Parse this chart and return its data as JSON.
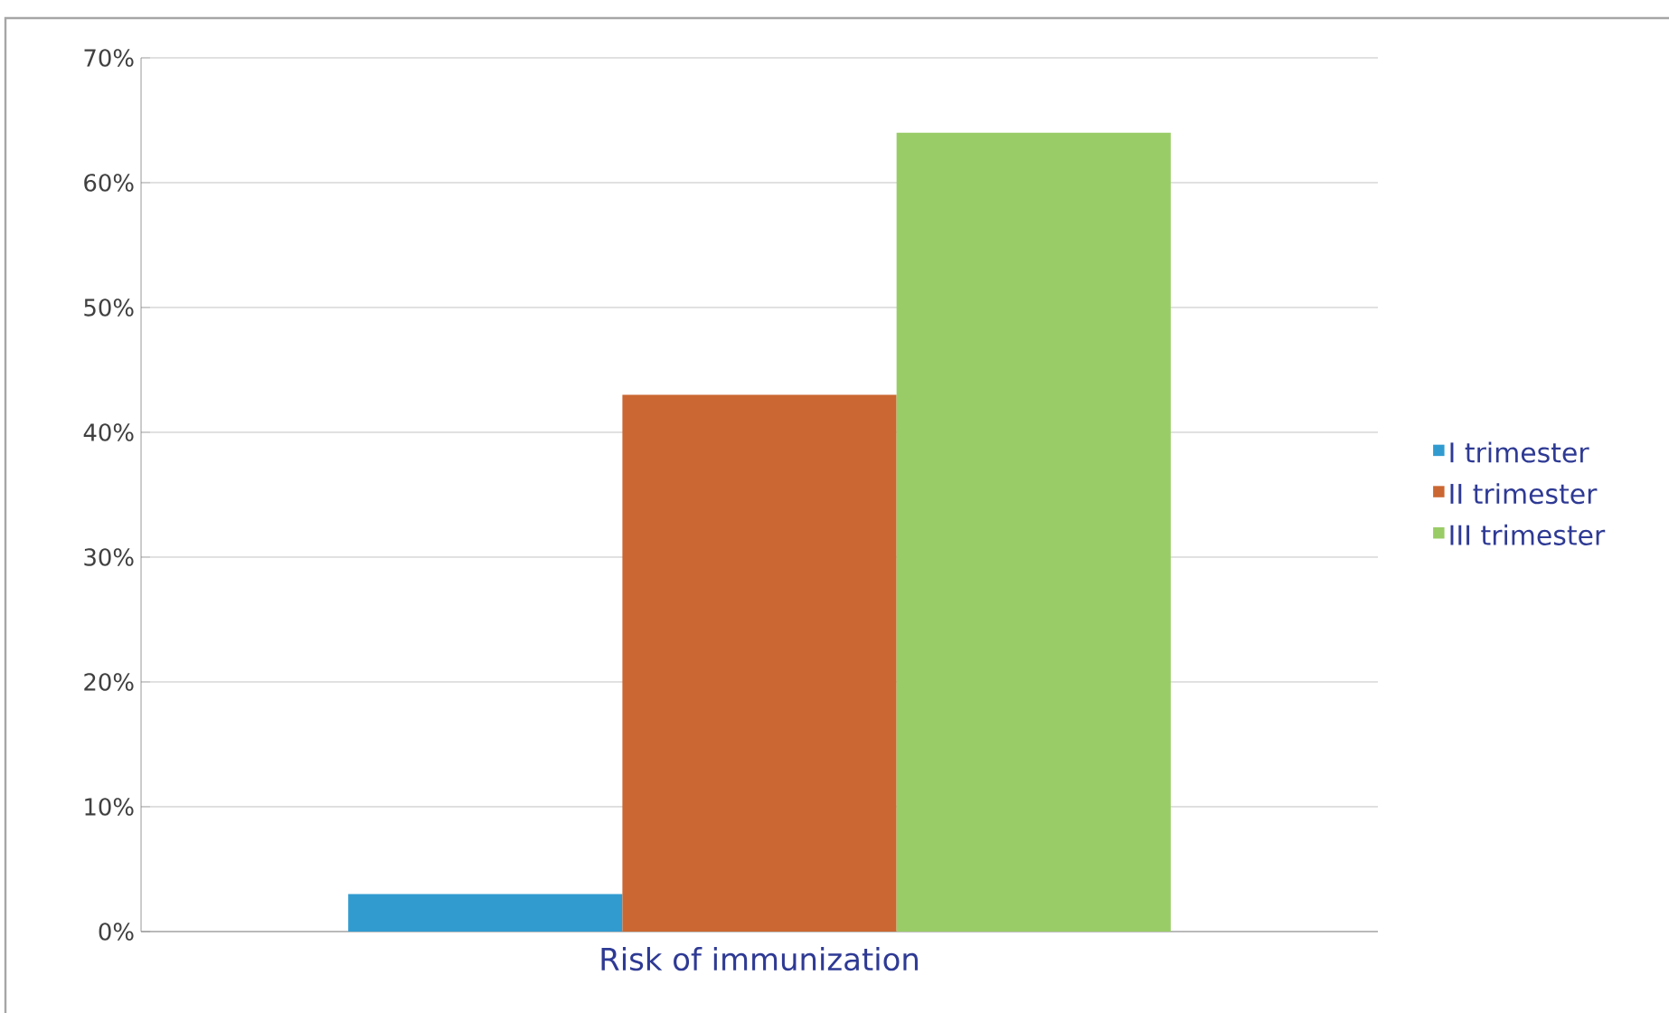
{
  "chart_data": {
    "type": "bar",
    "categories": [
      "Risk of immunization"
    ],
    "series": [
      {
        "name": "I trimester",
        "color": "#319bd0",
        "values": [
          3
        ]
      },
      {
        "name": "II trimester",
        "color": "#cb6732",
        "values": [
          43
        ]
      },
      {
        "name": "III trimester",
        "color": "#99cc66",
        "values": [
          64
        ]
      }
    ],
    "ylim": [
      0,
      70
    ],
    "yticks": [
      {
        "value": 0,
        "label": "0%"
      },
      {
        "value": 10,
        "label": "10%"
      },
      {
        "value": 20,
        "label": "20%"
      },
      {
        "value": 30,
        "label": "30%"
      },
      {
        "value": 40,
        "label": "40%"
      },
      {
        "value": 50,
        "label": "50%"
      },
      {
        "value": 60,
        "label": "60%"
      },
      {
        "value": 70,
        "label": "70%"
      }
    ],
    "grid": "y",
    "legend": "right"
  }
}
